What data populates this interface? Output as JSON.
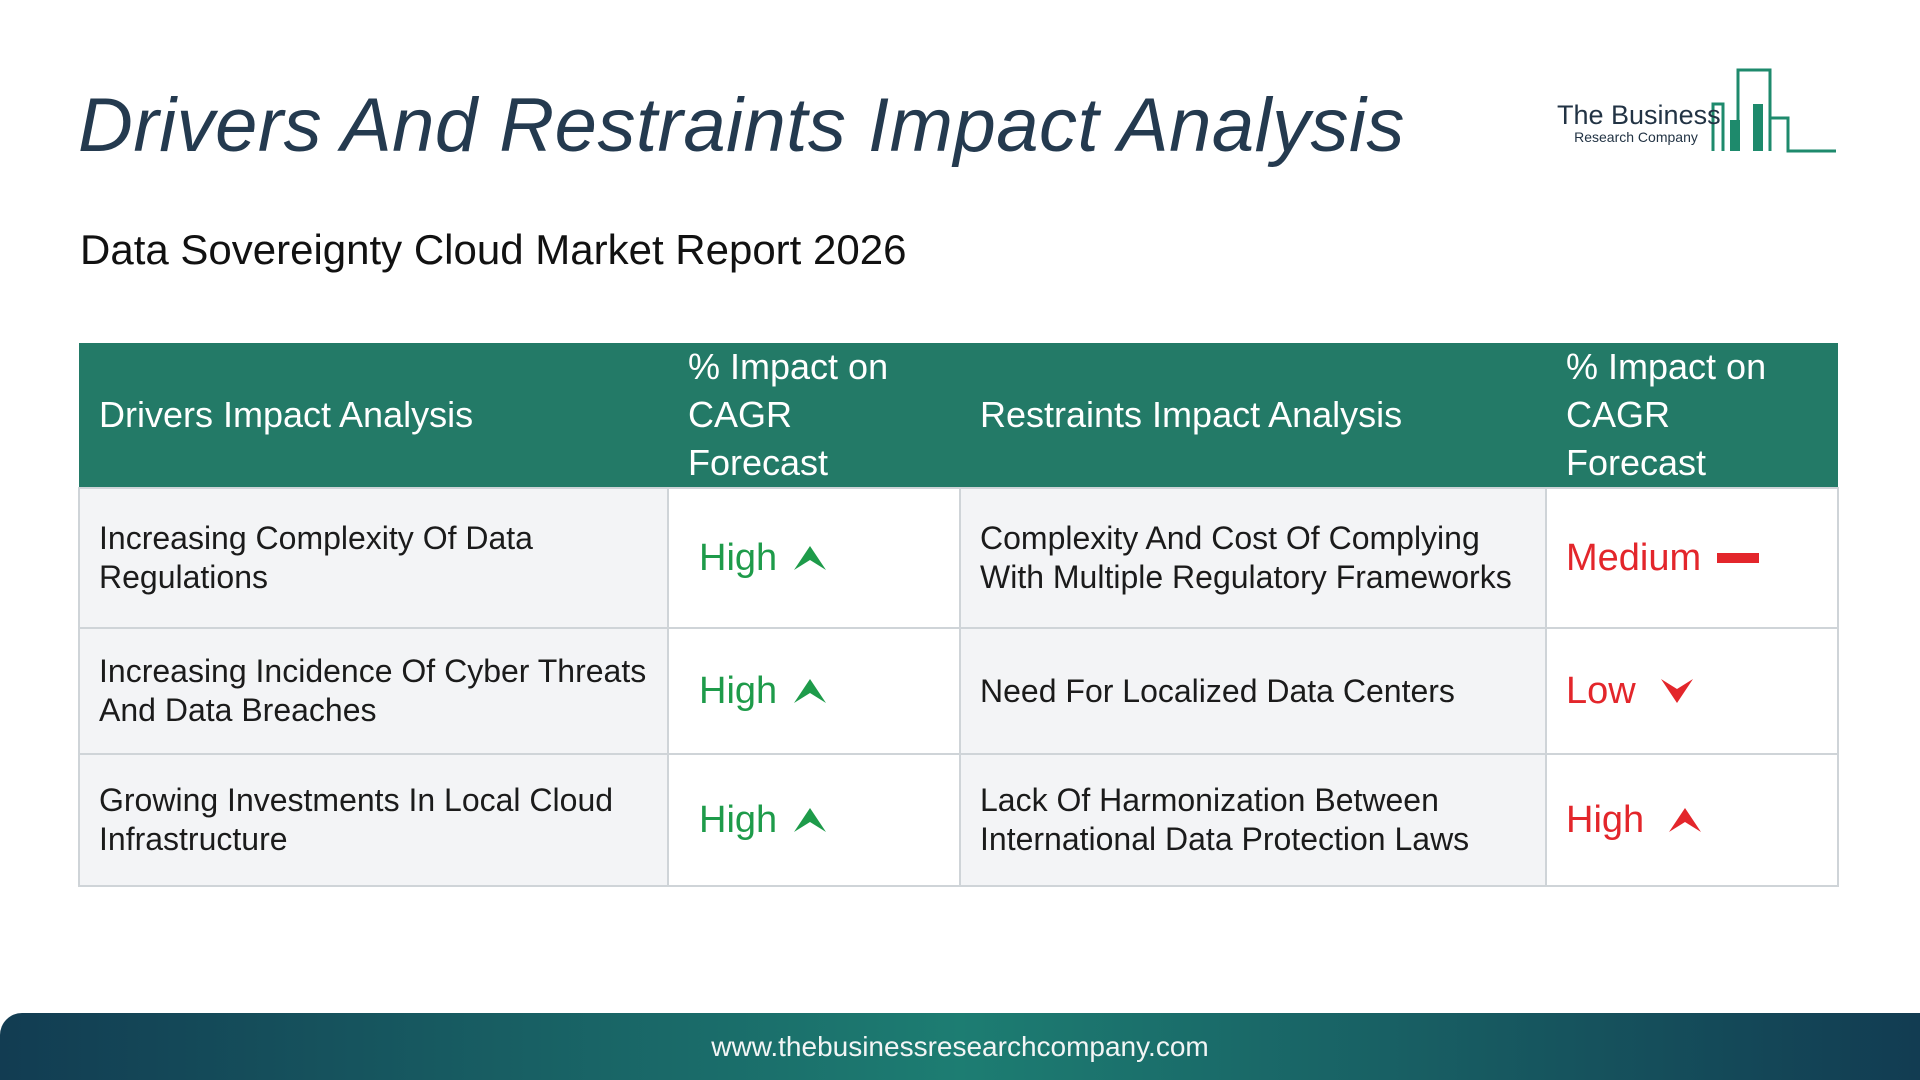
{
  "title": "Drivers And Restraints Impact Analysis",
  "subtitle": "Data Sovereignty Cloud Market Report 2026",
  "logo": {
    "name": "The Business",
    "sub": "Research Company",
    "color": "#1e8a6c"
  },
  "table": {
    "headers": {
      "drivers": "Drivers Impact Analysis",
      "driver_impact": "% Impact on CAGR Forecast",
      "restraints": "Restraints Impact Analysis",
      "restraint_impact": "% Impact on CAGR Forecast"
    },
    "rows": [
      {
        "driver": "Increasing Complexity Of Data Regulations",
        "driver_level": "High",
        "driver_icon": "triangle-up-icon",
        "restraint": "Complexity And Cost Of Complying With Multiple Regulatory Frameworks",
        "restraint_level": "Medium",
        "restraint_icon": "dash-icon"
      },
      {
        "driver": "Increasing Incidence Of Cyber Threats And Data Breaches",
        "driver_level": "High",
        "driver_icon": "triangle-up-icon",
        "restraint": "Need For Localized Data Centers",
        "restraint_level": "Low",
        "restraint_icon": "triangle-down-icon"
      },
      {
        "driver": "Growing Investments In Local Cloud Infrastructure",
        "driver_level": "High",
        "driver_icon": "triangle-up-icon",
        "restraint": "Lack Of Harmonization Between International Data Protection Laws",
        "restraint_level": "High",
        "restraint_icon": "triangle-up-icon"
      }
    ]
  },
  "colors": {
    "header_bg": "#237a67",
    "driver_level": "#1e9b4a",
    "restraint_level": "#e3262b",
    "title": "#243a4f"
  },
  "footer": {
    "url": "www.thebusinessresearchcompany.com"
  }
}
